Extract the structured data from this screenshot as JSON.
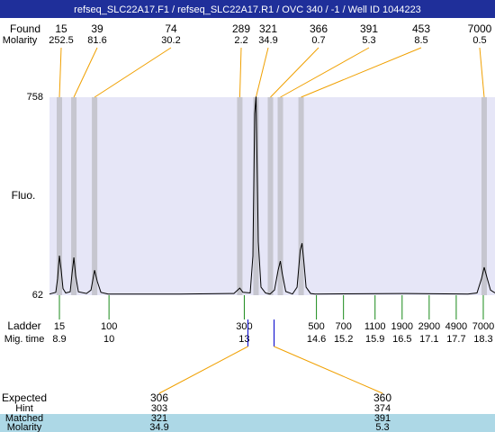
{
  "title_bar": "refseq_SLC22A17.F1 / refseq_SLC22A17.R1 / OVC 340 / -1 / Well ID 1044223",
  "chart_data": {
    "type": "electropherogram",
    "ylabel": "Fluo.",
    "ylim": [
      62,
      758
    ],
    "yticks": [
      62,
      758
    ],
    "xlim": [
      8.68,
      18.56
    ],
    "color": "#000000",
    "x": [
      8.68,
      8.82,
      8.86,
      8.9,
      8.94,
      8.98,
      9.04,
      9.14,
      9.18,
      9.22,
      9.26,
      9.32,
      9.5,
      9.6,
      9.68,
      9.74,
      9.82,
      9.98,
      11.57,
      12.77,
      12.9,
      12.97,
      13.13,
      13.19,
      13.23,
      13.26,
      13.27,
      13.31,
      13.37,
      13.47,
      13.57,
      13.67,
      13.75,
      13.8,
      13.84,
      13.92,
      14.07,
      14.17,
      14.24,
      14.28,
      14.32,
      14.37,
      14.47,
      14.57,
      16.56,
      17.96,
      18.16,
      18.26,
      18.32,
      18.38,
      18.46,
      18.56
    ],
    "values": [
      66,
      72,
      120,
      201,
      150,
      85,
      70,
      74,
      140,
      195,
      130,
      74,
      68,
      80,
      150,
      110,
      72,
      66,
      66,
      68,
      87,
      72,
      70,
      200,
      700,
      760,
      650,
      250,
      90,
      70,
      66,
      80,
      150,
      182,
      140,
      75,
      66,
      90,
      220,
      245,
      180,
      90,
      68,
      66,
      68,
      66,
      70,
      120,
      160,
      125,
      80,
      70
    ],
    "found": {
      "label": "Found",
      "molarity_label": "Molarity",
      "sizes": [
        15,
        39,
        74,
        289,
        321,
        366,
        391,
        453,
        7000
      ],
      "molarity": [
        252.5,
        81.6,
        30.2,
        2.2,
        34.9,
        0.7,
        5.3,
        8.5,
        0.5
      ],
      "mig_times": [
        8.9,
        9.22,
        9.68,
        12.9,
        13.26,
        13.58,
        13.8,
        14.26,
        18.32
      ]
    },
    "ladder": {
      "label": "Ladder",
      "mig_time_label": "Mig. time",
      "sizes": [
        15,
        100,
        300,
        500,
        700,
        1100,
        1900,
        2900,
        4900,
        7000
      ],
      "mig_times": [
        8.9,
        10,
        13,
        14.6,
        15.2,
        15.9,
        16.5,
        17.1,
        17.7,
        18.3
      ]
    },
    "expected": {
      "label": "Expected",
      "hint_label": "Hint",
      "matched_label": "Matched",
      "molarity_label": "Molarity",
      "sizes": [
        306,
        360
      ],
      "hint": [
        303,
        374
      ],
      "matched": [
        321,
        391
      ],
      "molarity": [
        34.9,
        5.3
      ],
      "mig_times": [
        13.08,
        13.66
      ]
    }
  }
}
